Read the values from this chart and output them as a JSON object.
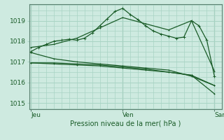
{
  "background_color": "#ceeae0",
  "grid_color": "#a8d4c4",
  "line_color": "#1a5c28",
  "title": "Pression niveau de la mer( hPa )",
  "xtick_labels": [
    "Jeu",
    "Ven",
    "Sam"
  ],
  "xtick_positions": [
    0,
    1,
    2
  ],
  "ylim": [
    1014.7,
    1019.8
  ],
  "yticks": [
    1015,
    1016,
    1017,
    1018,
    1019
  ],
  "series": [
    {
      "x": [
        0.0,
        0.083,
        0.167,
        0.25,
        0.333,
        0.417,
        0.5,
        0.583,
        0.667,
        0.75,
        0.833,
        0.917,
        1.0,
        1.083,
        1.167,
        1.25,
        1.333,
        1.417,
        1.5,
        1.583,
        1.667,
        1.75,
        1.833,
        1.917,
        2.0
      ],
      "y": [
        1017.5,
        1017.7,
        1017.85,
        1018.0,
        1018.05,
        1018.1,
        1018.05,
        1018.15,
        1018.4,
        1018.75,
        1019.1,
        1019.45,
        1019.6,
        1019.3,
        1019.05,
        1018.75,
        1018.5,
        1018.35,
        1018.25,
        1018.15,
        1018.2,
        1019.0,
        1018.75,
        1018.05,
        1016.3
      ]
    },
    {
      "x": [
        0.0,
        0.25,
        0.5,
        0.75,
        1.0,
        1.25,
        1.5,
        1.75,
        2.0
      ],
      "y": [
        1016.95,
        1016.95,
        1016.9,
        1016.85,
        1016.75,
        1016.65,
        1016.5,
        1016.35,
        1015.45
      ]
    },
    {
      "x": [
        0.0,
        0.25,
        0.5,
        0.75,
        1.0,
        1.25,
        1.5,
        1.75,
        2.0
      ],
      "y": [
        1016.95,
        1016.9,
        1016.85,
        1016.8,
        1016.7,
        1016.6,
        1016.5,
        1016.35,
        1015.85
      ]
    },
    {
      "x": [
        0.0,
        0.25,
        0.5,
        0.75,
        1.0,
        1.25,
        1.5,
        1.75,
        2.0
      ],
      "y": [
        1017.45,
        1017.15,
        1017.0,
        1016.9,
        1016.8,
        1016.7,
        1016.6,
        1016.3,
        1015.85
      ]
    },
    {
      "x": [
        0.0,
        0.25,
        0.5,
        0.75,
        1.0,
        1.25,
        1.5,
        1.75,
        2.0
      ],
      "y": [
        1017.7,
        1017.85,
        1018.15,
        1018.65,
        1019.15,
        1018.85,
        1018.55,
        1019.0,
        1016.55
      ]
    }
  ]
}
